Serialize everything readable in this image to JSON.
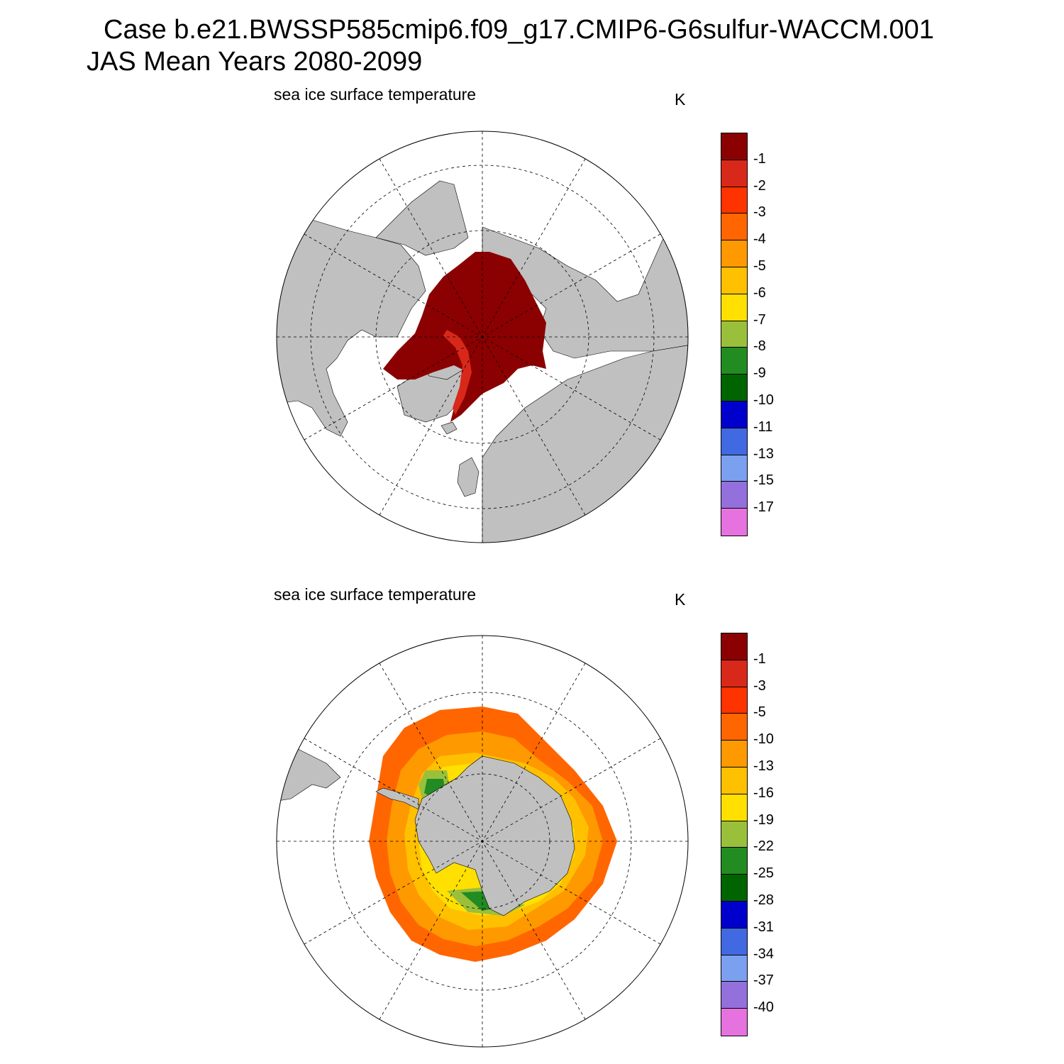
{
  "title_line1": "Case b.e21.BWSSP585cmip6.f09_g17.CMIP6-G6sulfur-WACCM.001",
  "title_line2": "JAS Mean   Years 2080-2099",
  "colors": {
    "land": "#c0c0c0",
    "palette": [
      "#8b0000",
      "#d8281a",
      "#ff3300",
      "#ff6600",
      "#ff9900",
      "#ffc000",
      "#ffe000",
      "#9ac03b",
      "#228b22",
      "#006400",
      "#0000cd",
      "#4169e1",
      "#7ba0f0",
      "#9370db",
      "#e672e0"
    ]
  },
  "chart_data": [
    {
      "type": "heatmap",
      "projection": "north-polar-stereographic",
      "title": "sea ice surface temperature",
      "units": "K",
      "legend": "right",
      "grid": true,
      "levels": [
        "-1",
        "-2",
        "-3",
        "-4",
        "-5",
        "-6",
        "-7",
        "-8",
        "-9",
        "-10",
        "-11",
        "-13",
        "-15",
        "-17"
      ],
      "dominant_range": [
        -1,
        0
      ]
    },
    {
      "type": "heatmap",
      "projection": "south-polar-stereographic",
      "title": "sea ice surface temperature",
      "units": "K",
      "legend": "right",
      "grid": true,
      "levels": [
        "-1",
        "-3",
        "-5",
        "-10",
        "-13",
        "-16",
        "-19",
        "-22",
        "-25",
        "-28",
        "-31",
        "-34",
        "-37",
        "-40"
      ],
      "range": [
        -28,
        -1
      ]
    }
  ]
}
